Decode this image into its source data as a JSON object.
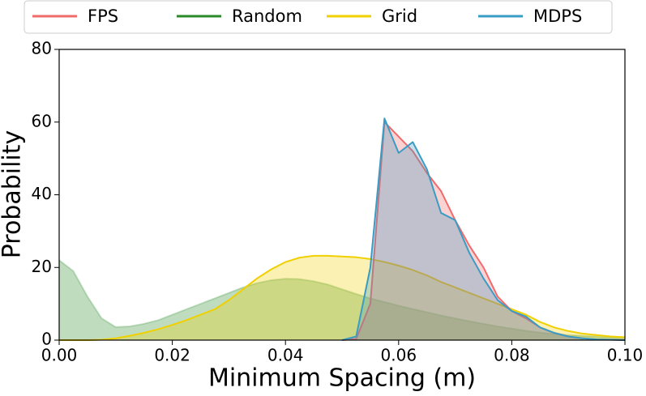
{
  "chart_data": {
    "type": "area",
    "x_label": "Minimum Spacing (m)",
    "y_label": "Probability",
    "x": [
      0,
      0.0025,
      0.005,
      0.0075,
      0.01,
      0.0125,
      0.015,
      0.0175,
      0.02,
      0.0225,
      0.025,
      0.0275,
      0.03,
      0.0325,
      0.035,
      0.0375,
      0.04,
      0.0425,
      0.045,
      0.0475,
      0.05,
      0.0525,
      0.055,
      0.0575,
      0.06,
      0.0625,
      0.065,
      0.0675,
      0.07,
      0.0725,
      0.075,
      0.0775,
      0.08,
      0.0825,
      0.085,
      0.0875,
      0.09,
      0.0925,
      0.095,
      0.0975,
      0.1
    ],
    "series": [
      {
        "name": "FPS",
        "color": "#f26b6b",
        "values": [
          null,
          null,
          null,
          null,
          null,
          null,
          null,
          null,
          null,
          null,
          null,
          null,
          null,
          null,
          null,
          null,
          null,
          null,
          null,
          null,
          0,
          0.3,
          10,
          60,
          56,
          52,
          46,
          41,
          33,
          26,
          20,
          12,
          8,
          6,
          3.5,
          2,
          1,
          0.5,
          0.2,
          0.1,
          0
        ]
      },
      {
        "name": "Random",
        "color": "#2a8a2a",
        "values": [
          22,
          19,
          12,
          6,
          3.6,
          3.8,
          4.5,
          5.5,
          7,
          8.5,
          10,
          11.5,
          13,
          14.5,
          15.7,
          16.5,
          16.9,
          16.8,
          16.2,
          15.3,
          14,
          12.7,
          11.5,
          10.5,
          9.5,
          8.6,
          7.7,
          6.8,
          6,
          5.2,
          4.5,
          3.8,
          3.2,
          2.6,
          2.1,
          1.7,
          1.4,
          1.2,
          1,
          0.8,
          0.7
        ]
      },
      {
        "name": "Grid",
        "color": "#f0d000",
        "values": [
          0,
          0,
          0,
          0.1,
          0.5,
          1.2,
          2,
          3,
          4.2,
          5.5,
          7,
          8.5,
          11,
          14,
          17,
          19.5,
          21.5,
          22.7,
          23.2,
          23.2,
          23,
          22.8,
          22.3,
          21.5,
          20.5,
          19.3,
          17.8,
          16,
          14.5,
          13,
          11.5,
          10,
          8.5,
          7,
          5,
          3.5,
          2.5,
          1.8,
          1.4,
          1,
          0.8
        ]
      },
      {
        "name": "MDPS",
        "color": "#3a9cc4",
        "values": [
          null,
          null,
          null,
          null,
          null,
          null,
          null,
          null,
          null,
          null,
          null,
          null,
          null,
          null,
          null,
          null,
          null,
          null,
          null,
          null,
          0,
          1,
          20,
          61,
          51.5,
          54.5,
          47,
          35,
          33,
          24,
          17,
          11,
          8,
          6.5,
          3.5,
          2,
          1,
          0.5,
          0.2,
          0.1,
          0
        ]
      }
    ],
    "xlim": [
      0,
      0.1
    ],
    "xticks": [
      {
        "value": 0,
        "label": "0.00"
      },
      0.02,
      0.04,
      0.06,
      0.08,
      {
        "value": 0.1,
        "label": "0.10"
      }
    ],
    "ylim": [
      0,
      80
    ],
    "yticks": [
      0,
      20,
      40,
      60,
      80
    ],
    "legend": "top"
  }
}
